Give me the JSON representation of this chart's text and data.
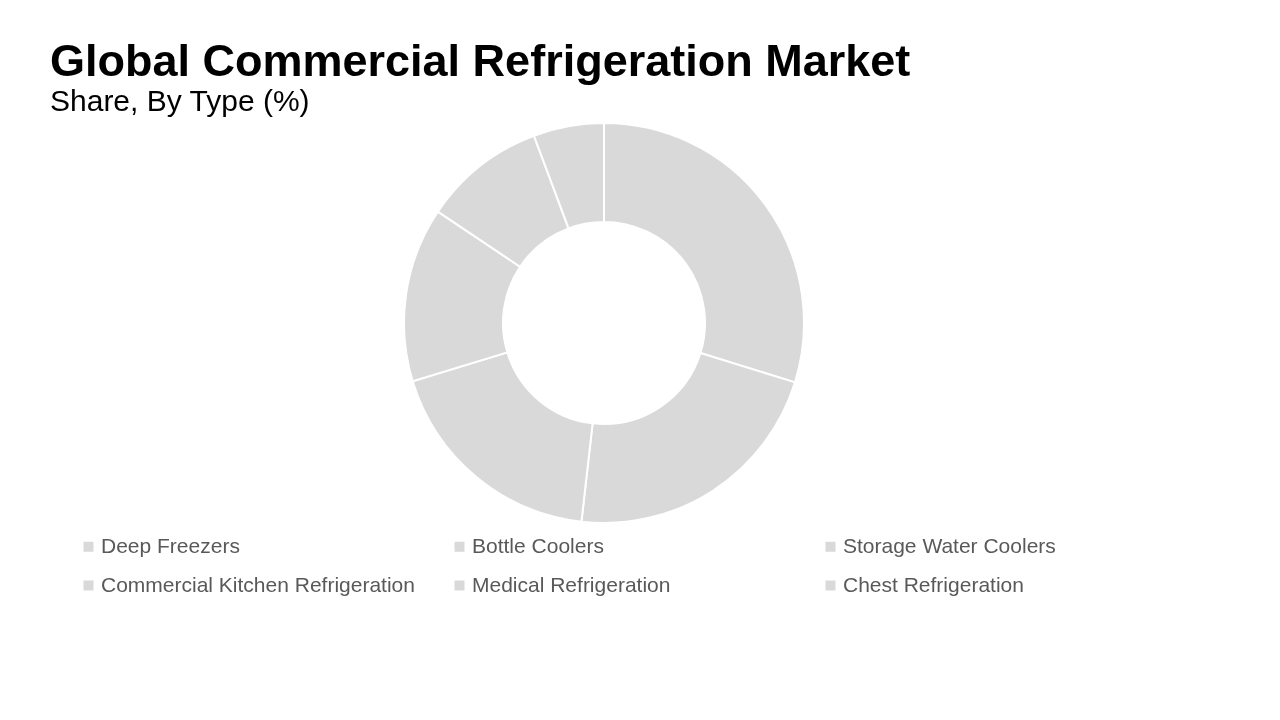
{
  "chart_data": {
    "type": "donut",
    "title": "Global Commercial Refrigeration Market",
    "subtitle": "Share, By Type (%)",
    "categories": [
      "Deep Freezers",
      "Bottle Coolers",
      "Storage Water Coolers",
      "Commercial Kitchen Refrigeration",
      "Medical Refrigeration",
      "Chest Refrigeration"
    ],
    "values": [
      29.8,
      22.0,
      18.5,
      14.1,
      9.9,
      5.7
    ],
    "colors": [
      "#d9d9d9",
      "#d9d9d9",
      "#d9d9d9",
      "#d9d9d9",
      "#d9d9d9",
      "#d9d9d9"
    ],
    "legend": "bottom"
  }
}
